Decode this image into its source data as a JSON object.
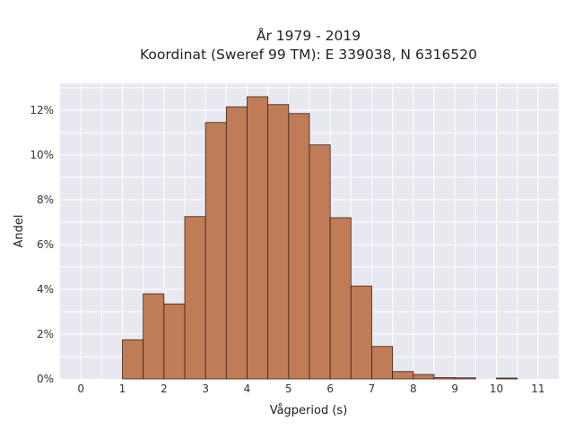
{
  "chart_data": {
    "type": "bar",
    "title_lines": [
      "År 1979 - 2019",
      "Koordinat (Sweref 99 TM): E 339038, N 6316520"
    ],
    "xlabel": "Vågperiod (s)",
    "ylabel": "Andel",
    "bin_width": 0.5,
    "bin_starts": [
      1.0,
      1.5,
      2.0,
      2.5,
      3.0,
      3.5,
      4.0,
      4.5,
      5.0,
      5.5,
      6.0,
      6.5,
      7.0,
      7.5,
      8.0,
      8.5,
      9.0,
      9.5,
      10.0,
      10.5
    ],
    "values": [
      1.75,
      3.8,
      3.35,
      7.25,
      11.45,
      12.15,
      12.6,
      12.25,
      11.85,
      10.45,
      7.2,
      4.15,
      1.45,
      0.33,
      0.2,
      0.06,
      0.05,
      0.0,
      0.04,
      0.0
    ],
    "xlim": [
      -0.5,
      11.5
    ],
    "ylim": [
      0,
      13.2
    ],
    "x_ticks": [
      0,
      1,
      2,
      3,
      4,
      5,
      6,
      7,
      8,
      9,
      10,
      11
    ],
    "y_ticks": [
      0,
      2,
      4,
      6,
      8,
      10,
      12
    ],
    "y_tick_suffix": "%",
    "bar_color": "#c07c56",
    "bar_edge_color": "#3a2418",
    "plot_bg": "#e8e8f1",
    "grid": true,
    "grid_color": "#ffffff"
  }
}
